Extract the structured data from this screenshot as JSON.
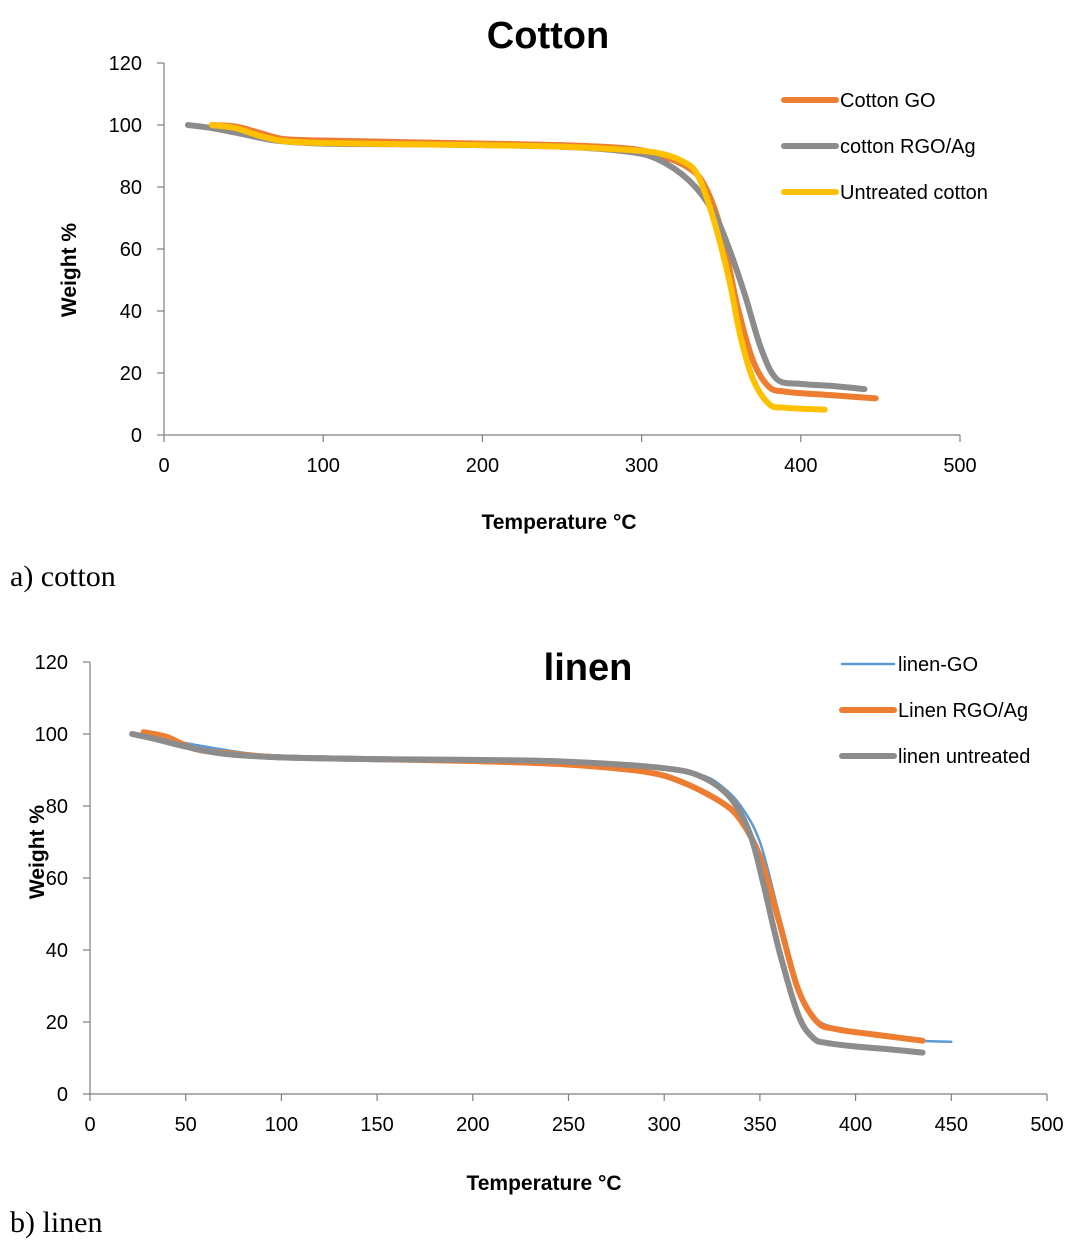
{
  "chart_data": [
    {
      "type": "line",
      "title": "Cotton",
      "xlabel": "Temperature  °C",
      "ylabel": "Weight %",
      "xlim": [
        0,
        500
      ],
      "ylim": [
        0,
        120
      ],
      "xticks": [
        "0",
        "100",
        "200",
        "300",
        "400",
        "500"
      ],
      "yticks": [
        "0",
        "20",
        "40",
        "60",
        "80",
        "100",
        "120"
      ],
      "grid": false,
      "legend": "top-right",
      "series": [
        {
          "name": "Cotton GO",
          "color": "#ED7D31",
          "width": 6,
          "x": [
            30,
            45,
            60,
            75,
            100,
            150,
            200,
            250,
            290,
            310,
            330,
            340,
            350,
            360,
            370,
            380,
            390,
            400,
            420,
            447
          ],
          "y": [
            100,
            99.5,
            97.5,
            95.5,
            95,
            94.5,
            94,
            93.5,
            92.5,
            90.5,
            86,
            80,
            66,
            42,
            24,
            15.5,
            14,
            13.5,
            12.8,
            11.8
          ]
        },
        {
          "name": " cotton RGO/Ag",
          "color": "#8C8C8C",
          "width": 6,
          "x": [
            15,
            30,
            50,
            70,
            100,
            150,
            200,
            250,
            290,
            310,
            330,
            345,
            355,
            365,
            375,
            385,
            400,
            420,
            440
          ],
          "y": [
            100,
            99,
            97,
            95,
            94,
            93.8,
            93.5,
            93,
            91.5,
            89,
            82,
            72,
            60,
            45,
            28,
            18,
            16.5,
            15.8,
            14.8
          ]
        },
        {
          "name": "Untreated cotton",
          "color": "#FFC000",
          "width": 6,
          "x": [
            30,
            45,
            60,
            75,
            100,
            150,
            200,
            250,
            290,
            310,
            325,
            335,
            345,
            355,
            362,
            370,
            380,
            390,
            415
          ],
          "y": [
            100,
            99,
            96.5,
            94.8,
            94.2,
            93.8,
            93.5,
            93,
            92,
            91,
            88.5,
            84,
            70,
            50,
            32,
            18,
            10,
            8.8,
            8.2
          ]
        }
      ]
    },
    {
      "type": "line",
      "title": "linen",
      "xlabel": "Temperature °C",
      "ylabel": "Weight %",
      "xlim": [
        0,
        500
      ],
      "ylim": [
        0,
        120
      ],
      "xticks": [
        "0",
        "50",
        "100",
        "150",
        "200",
        "250",
        "300",
        "350",
        "400",
        "450",
        "500"
      ],
      "yticks": [
        "0",
        "20",
        "40",
        "60",
        "80",
        "100",
        "120"
      ],
      "grid": false,
      "legend": "top-right",
      "series": [
        {
          "name": "linen-GO",
          "color": "#5B9BD5",
          "width": 2.5,
          "x": [
            22,
            35,
            55,
            80,
            100,
            150,
            200,
            250,
            300,
            320,
            330,
            340,
            350,
            360,
            370,
            380,
            400,
            430,
            450
          ],
          "y": [
            100,
            99,
            97,
            94.8,
            94,
            93.5,
            93,
            92.5,
            90.5,
            88.5,
            85.5,
            80,
            70,
            50,
            30,
            20.5,
            17.5,
            15,
            14.5
          ]
        },
        {
          "name": "Linen RGO/Ag",
          "color": "#ED7D31",
          "width": 6,
          "x": [
            28,
            40,
            55,
            75,
            100,
            150,
            200,
            250,
            290,
            310,
            330,
            340,
            350,
            360,
            370,
            380,
            390,
            410,
            435
          ],
          "y": [
            100.5,
            99.2,
            95.8,
            94.5,
            93.5,
            93,
            92.5,
            91.5,
            89.5,
            86.5,
            81,
            76,
            66,
            48,
            29,
            20,
            18,
            16.5,
            14.8
          ]
        },
        {
          "name": "linen untreated",
          "color": "#8C8C8C",
          "width": 6,
          "x": [
            22,
            35,
            50,
            70,
            100,
            150,
            200,
            250,
            300,
            320,
            335,
            345,
            352,
            360,
            370,
            378,
            385,
            400,
            420,
            435
          ],
          "y": [
            100,
            98.5,
            96.5,
            94.5,
            93.5,
            93,
            92.8,
            92.3,
            90.5,
            88,
            82,
            72,
            58,
            40,
            22,
            15.5,
            14.2,
            13.2,
            12.3,
            11.5
          ]
        }
      ]
    }
  ],
  "captions": {
    "a": "a) cotton",
    "b": "b) linen"
  }
}
